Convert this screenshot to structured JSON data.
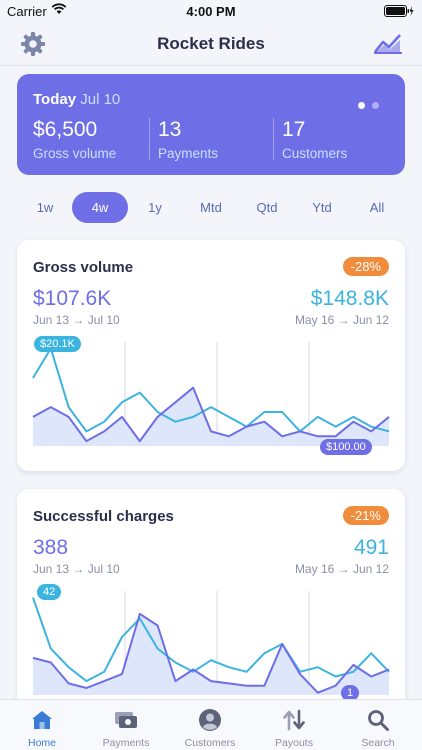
{
  "status_bar": {
    "carrier": "Carrier",
    "time": "4:00 PM"
  },
  "nav": {
    "title": "Rocket Rides",
    "left_icon": "gear-icon",
    "right_icon": "trend-chart-icon"
  },
  "summary": {
    "today_label": "Today",
    "date": "Jul 10",
    "stats": [
      {
        "value": "$6,500",
        "label": "Gross volume"
      },
      {
        "value": "13",
        "label": "Payments"
      },
      {
        "value": "17",
        "label": "Customers"
      }
    ],
    "pages": 2,
    "active_page": 0
  },
  "ranges": {
    "items": [
      "1w",
      "4w",
      "1y",
      "Mtd",
      "Qtd",
      "Ytd",
      "All"
    ],
    "active": 1
  },
  "colors": {
    "accent": "#6e6ee6",
    "secondary": "#3cb4e0",
    "badge": "#f08c3c",
    "tab_active": "#3a7bd5"
  },
  "cards": [
    {
      "title": "Gross volume",
      "badge": "-28%",
      "current_value": "$107.6K",
      "current_range": "Jun 13 → Jul 10",
      "previous_value": "$148.8K",
      "previous_range": "May 16 → Jun 12",
      "max_label": "$20.1K",
      "min_label": "$100.00",
      "chart_data": {
        "type": "area",
        "series": [
          {
            "values": [
              14,
              20.1,
              8,
              3,
              5,
              9,
              11,
              7,
              5,
              6,
              8,
              6,
              4,
              7,
              7,
              3,
              6,
              4,
              6,
              4,
              3
            ]
          },
          {
            "values": [
              6,
              8,
              6,
              1,
              3,
              6,
              1,
              6,
              9,
              12,
              3,
              2,
              4,
              5,
              2,
              3,
              2,
              2,
              5,
              3,
              6
            ]
          }
        ],
        "ymax": 21
      }
    },
    {
      "title": "Successful charges",
      "badge": "-21%",
      "current_value": "388",
      "current_range": "Jun 13 → Jul 10",
      "previous_value": "491",
      "previous_range": "May 16 → Jun 12",
      "max_label": "42",
      "min_label": "1",
      "chart_data": {
        "type": "area",
        "series": [
          {
            "values": [
              42,
              20,
              12,
              6,
              10,
              25,
              33,
              20,
              14,
              10,
              15,
              12,
              10,
              18,
              22,
              10,
              12,
              8,
              10,
              18,
              10
            ]
          },
          {
            "values": [
              16,
              14,
              5,
              3,
              6,
              9,
              35,
              30,
              6,
              11,
              6,
              5,
              4,
              4,
              22,
              9,
              1,
              4,
              13,
              8,
              11
            ]
          }
        ],
        "ymax": 44
      }
    }
  ],
  "tabs": [
    {
      "label": "Home",
      "icon": "home-icon",
      "active": true
    },
    {
      "label": "Payments",
      "icon": "payments-icon",
      "active": false
    },
    {
      "label": "Customers",
      "icon": "customers-icon",
      "active": false
    },
    {
      "label": "Payouts",
      "icon": "payouts-icon",
      "active": false
    },
    {
      "label": "Search",
      "icon": "search-icon",
      "active": false
    }
  ]
}
